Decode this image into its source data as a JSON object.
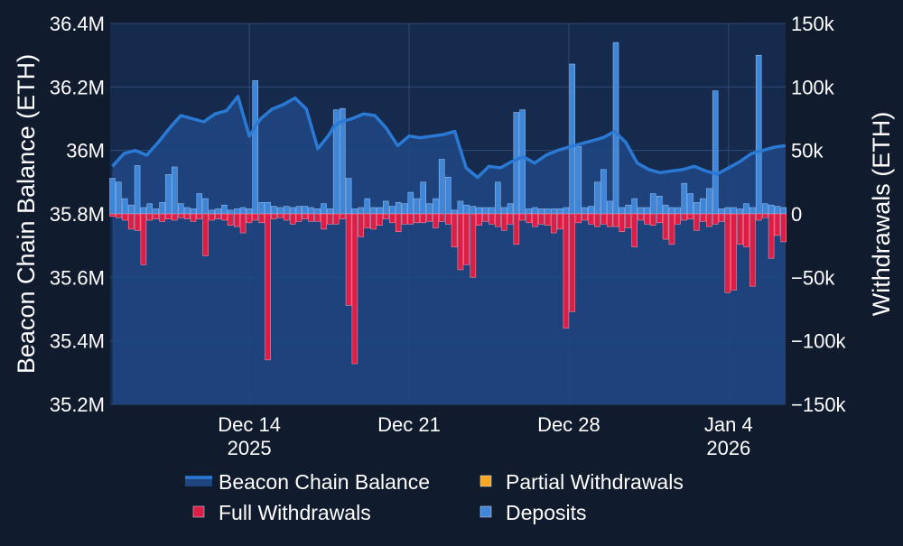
{
  "chart_data": {
    "type": "bar+line",
    "title": "",
    "xlabel": "",
    "ylabel_left": "Beacon Chain Balance (ETH)",
    "ylabel_right": "Withdrawals (ETH)",
    "ylim_left": [
      35200000,
      36400000
    ],
    "ylim_right": [
      -150000,
      150000
    ],
    "left_ticks": [
      "35.2M",
      "35.4M",
      "35.6M",
      "35.8M",
      "36M",
      "36.2M",
      "36.4M"
    ],
    "right_ticks": [
      "−150k",
      "−100k",
      "−50k",
      "0",
      "50k",
      "100k",
      "150k"
    ],
    "x_ticks": [
      {
        "label": "Dec 14",
        "year": "2025",
        "day": 6
      },
      {
        "label": "Dec 21",
        "year": "",
        "day": 13
      },
      {
        "label": "Dec 28",
        "year": "",
        "day": 20
      },
      {
        "label": "Jan 4",
        "year": "2026",
        "day": 27
      }
    ],
    "x_range_days": [
      -0.1,
      29.5
    ],
    "colors": {
      "balance_line": "#2a7ad5",
      "balance_fill": "#1f4580",
      "full_withdrawals": "#dc1e46",
      "partial_withdrawals": "#f5a623",
      "deposits": "#3f86d8",
      "grid": "#2f4a78",
      "background": "#111b2e"
    },
    "legend": [
      {
        "name": "Beacon Chain Balance",
        "kind": "line"
      },
      {
        "name": "Partial Withdrawals",
        "kind": "partial"
      },
      {
        "name": "Full Withdrawals",
        "kind": "full"
      },
      {
        "name": "Deposits",
        "kind": "deposit"
      }
    ],
    "balance_series": {
      "name": "Beacon Chain Balance",
      "x": [
        0,
        0.5,
        1,
        1.5,
        2,
        2.5,
        3,
        3.5,
        4,
        4.5,
        5,
        5.5,
        6,
        6.3,
        6.5,
        7,
        7.5,
        8,
        8.5,
        9,
        9.5,
        9.7,
        10,
        10.5,
        11,
        11.5,
        12,
        12.5,
        13,
        13.5,
        14,
        14.5,
        15,
        15.5,
        16,
        16.5,
        17,
        17.5,
        18,
        18.5,
        19,
        19.5,
        20,
        20.5,
        21,
        21.5,
        22,
        22.5,
        23,
        23.5,
        24,
        24.5,
        25,
        25.5,
        26,
        26.5,
        27,
        27.5,
        28,
        28.5,
        29,
        29.5
      ],
      "values": [
        35950000,
        35990000,
        36000000,
        35985000,
        36025000,
        36070000,
        36110000,
        36100000,
        36090000,
        36115000,
        36125000,
        36170000,
        36045000,
        36080000,
        36100000,
        36130000,
        36145000,
        36165000,
        36130000,
        36005000,
        36050000,
        36075000,
        36090000,
        36100000,
        36115000,
        36110000,
        36070000,
        36015000,
        36045000,
        36040000,
        36045000,
        36050000,
        36060000,
        35945000,
        35915000,
        35950000,
        35945000,
        35965000,
        35980000,
        35960000,
        35985000,
        36000000,
        36010000,
        36020000,
        36030000,
        36040000,
        36060000,
        36025000,
        35960000,
        35940000,
        35930000,
        35935000,
        35940000,
        35950000,
        35935000,
        35925000,
        35945000,
        35965000,
        35990000,
        36000000,
        36010000,
        36015000
      ]
    },
    "deposits_series": {
      "name": "Deposits",
      "x": [
        0.0,
        0.27,
        0.54,
        0.82,
        1.09,
        1.36,
        1.63,
        1.91,
        2.18,
        2.45,
        2.72,
        3.0,
        3.27,
        3.54,
        3.81,
        4.08,
        4.36,
        4.63,
        4.9,
        5.17,
        5.45,
        5.72,
        5.99,
        6.26,
        6.54,
        6.81,
        7.08,
        7.35,
        7.63,
        7.9,
        8.17,
        8.44,
        8.71,
        8.99,
        9.26,
        9.53,
        9.8,
        10.08,
        10.35,
        10.62,
        10.89,
        11.17,
        11.44,
        11.71,
        11.98,
        12.26,
        12.53,
        12.8,
        13.07,
        13.34,
        13.62,
        13.89,
        14.16,
        14.43,
        14.71,
        14.98,
        15.25,
        15.52,
        15.8,
        16.07,
        16.34,
        16.61,
        16.89,
        17.16,
        17.43,
        17.7,
        17.97,
        18.25,
        18.52,
        18.79,
        19.06,
        19.34,
        19.61,
        19.88,
        20.15,
        20.43,
        20.7,
        20.97,
        21.24,
        21.52,
        21.79,
        22.06,
        22.33,
        22.6,
        22.88,
        23.15,
        23.42,
        23.69,
        23.97,
        24.24,
        24.51,
        24.78,
        25.06,
        25.33,
        25.6,
        25.87,
        26.15,
        26.42,
        26.69,
        26.96,
        27.23,
        27.51,
        27.78,
        28.05,
        28.32,
        28.6,
        28.87,
        29.14,
        29.41
      ],
      "values": [
        28000,
        25000,
        12000,
        7000,
        38000,
        5000,
        8000,
        4000,
        9000,
        31000,
        37000,
        8000,
        5000,
        4000,
        16000,
        12000,
        3000,
        4000,
        7000,
        3000,
        4000,
        5000,
        4000,
        105000,
        9000,
        9000,
        6000,
        5000,
        6000,
        5000,
        6000,
        6000,
        5000,
        4000,
        8000,
        4000,
        82000,
        83000,
        28000,
        4000,
        5000,
        12000,
        5000,
        5000,
        10000,
        6000,
        9000,
        8000,
        17000,
        12000,
        25000,
        8000,
        12000,
        43000,
        29000,
        3000,
        10000,
        7000,
        6000,
        5000,
        5000,
        5000,
        25000,
        5000,
        8000,
        80000,
        82000,
        4000,
        5000,
        4000,
        4000,
        4000,
        4000,
        5000,
        118000,
        53000,
        5000,
        6000,
        25000,
        35000,
        10000,
        135000,
        5000,
        7000,
        12000,
        5000,
        5000,
        16000,
        14000,
        7000,
        5000,
        5000,
        24000,
        16000,
        9000,
        12000,
        20000,
        97000,
        4000,
        5000,
        5000,
        4000,
        8000,
        5000,
        125000,
        8000,
        7000,
        6000,
        5000
      ],
      "labels": []
    },
    "full_withdrawals_series": {
      "name": "Full Withdrawals",
      "x": [
        0.0,
        0.27,
        0.54,
        0.82,
        1.09,
        1.36,
        1.63,
        1.91,
        2.18,
        2.45,
        2.72,
        3.0,
        3.27,
        3.54,
        3.81,
        4.08,
        4.36,
        4.63,
        4.9,
        5.17,
        5.45,
        5.72,
        5.99,
        6.26,
        6.54,
        6.81,
        7.08,
        7.35,
        7.63,
        7.9,
        8.17,
        8.44,
        8.71,
        8.99,
        9.26,
        9.53,
        9.8,
        10.08,
        10.35,
        10.62,
        10.89,
        11.17,
        11.44,
        11.71,
        11.98,
        12.26,
        12.53,
        12.8,
        13.07,
        13.34,
        13.62,
        13.89,
        14.16,
        14.43,
        14.71,
        14.98,
        15.25,
        15.52,
        15.8,
        16.07,
        16.34,
        16.61,
        16.89,
        17.16,
        17.43,
        17.7,
        17.97,
        18.25,
        18.52,
        18.79,
        19.06,
        19.34,
        19.61,
        19.88,
        20.15,
        20.43,
        20.7,
        20.97,
        21.24,
        21.52,
        21.79,
        22.06,
        22.33,
        22.6,
        22.88,
        23.15,
        23.42,
        23.69,
        23.97,
        24.24,
        24.51,
        24.78,
        25.06,
        25.33,
        25.6,
        25.87,
        26.15,
        26.42,
        26.69,
        26.96,
        27.23,
        27.51,
        27.78,
        28.05,
        28.32,
        28.6,
        28.87,
        29.14,
        29.41
      ],
      "values": [
        -2000,
        -3000,
        -5000,
        -12000,
        -13000,
        -40000,
        -5000,
        -4000,
        -6000,
        -4000,
        -5000,
        -3000,
        -4000,
        -6000,
        -4000,
        -33000,
        -5000,
        -4000,
        -5000,
        -9000,
        -10000,
        -15000,
        -7000,
        -5000,
        -7000,
        -115000,
        -4000,
        -3000,
        -5000,
        -8000,
        -6000,
        -4000,
        -6000,
        -6000,
        -12000,
        -8000,
        -8000,
        -4000,
        -72000,
        -118000,
        -18000,
        -11000,
        -12000,
        -9000,
        -4000,
        -7000,
        -14000,
        -8000,
        -8000,
        -7000,
        -7000,
        -6000,
        -11000,
        -6000,
        -8000,
        -26000,
        -44000,
        -40000,
        -50000,
        -9000,
        -6000,
        -8000,
        -10000,
        -13000,
        -8000,
        -24000,
        -5000,
        -7000,
        -10000,
        -8000,
        -9000,
        -15000,
        -12000,
        -90000,
        -77000,
        -7000,
        -5000,
        -8000,
        -10000,
        -8000,
        -10000,
        -10000,
        -14000,
        -11000,
        -26000,
        -5000,
        -8000,
        -9000,
        -7000,
        -20000,
        -24000,
        -8000,
        -5000,
        -4000,
        -13000,
        -6000,
        -10000,
        -8000,
        -6000,
        -62000,
        -60000,
        -24000,
        -26000,
        -57000,
        -5000,
        -3000,
        -35000,
        -17000,
        -22000
      ]
    },
    "partial_withdrawals_series": {
      "name": "Partial Withdrawals",
      "values_note": "small amounts, visible only as slivers near zero"
    }
  }
}
